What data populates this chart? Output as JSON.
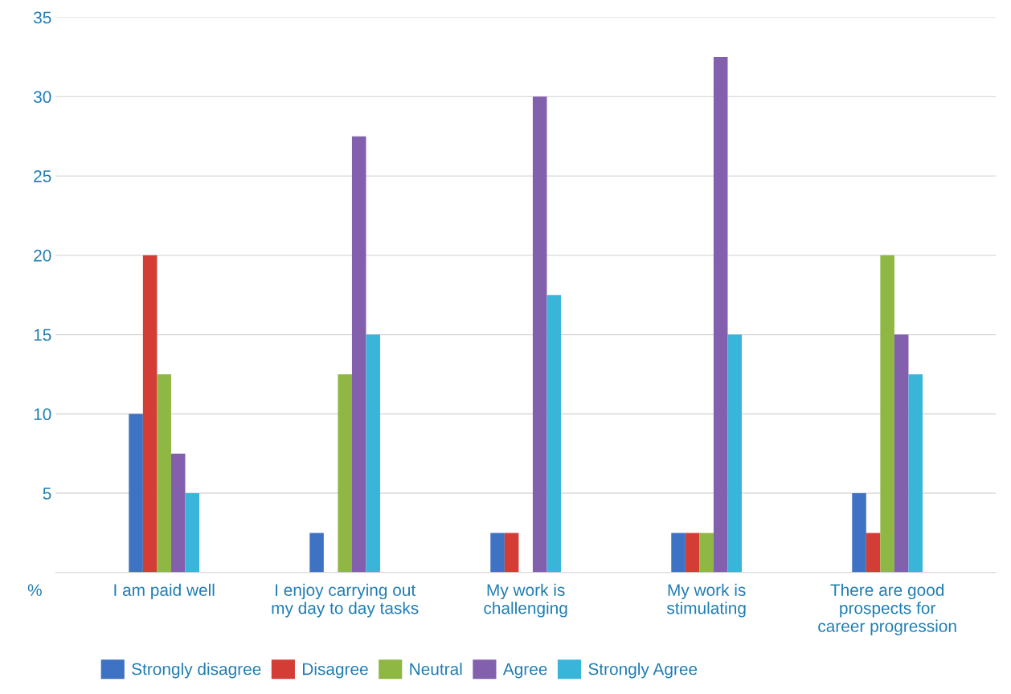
{
  "chart_data": {
    "type": "bar",
    "ylabel": "%",
    "categories": [
      "I am paid well",
      "I enjoy carrying out\nmy day to day tasks",
      "My work is\nchallenging",
      "My work is\nstimulating",
      "There are good\nprospects for\ncareer progression"
    ],
    "series": [
      {
        "name": "Strongly disagree",
        "color": "#3e72c2",
        "values": [
          10,
          2.5,
          2.5,
          2.5,
          5
        ]
      },
      {
        "name": "Disagree",
        "color": "#d43d36",
        "values": [
          20,
          0,
          2.5,
          2.5,
          2.5
        ]
      },
      {
        "name": "Neutral",
        "color": "#8fb743",
        "values": [
          12.5,
          12.5,
          0,
          2.5,
          20
        ]
      },
      {
        "name": "Agree",
        "color": "#8360ae",
        "values": [
          7.5,
          27.5,
          30,
          32.5,
          15
        ]
      },
      {
        "name": "Strongly Agree",
        "color": "#3ab5da",
        "values": [
          5,
          15,
          17.5,
          15,
          12.5
        ]
      }
    ],
    "ylim": [
      0,
      35
    ],
    "yticks": [
      5,
      10,
      15,
      20,
      25,
      30,
      35
    ],
    "grid": "y",
    "legend": "bottom"
  }
}
